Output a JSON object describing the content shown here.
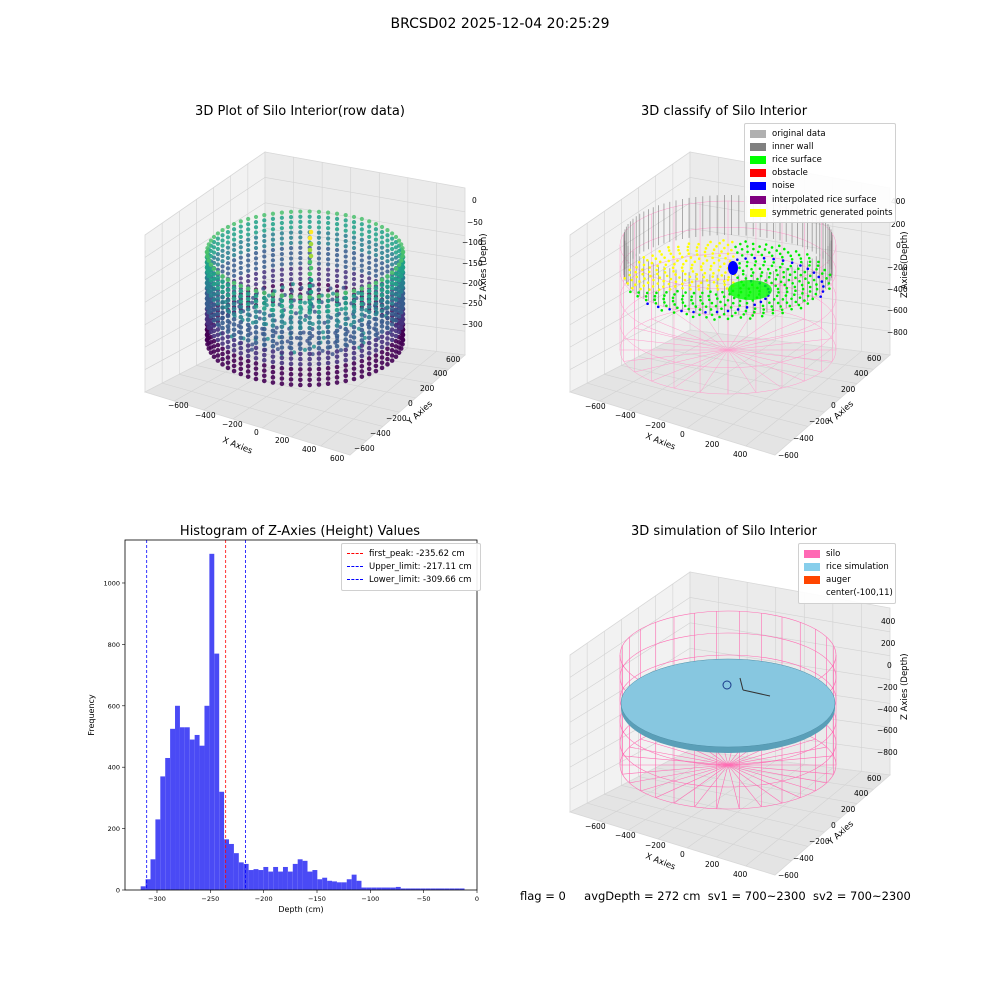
{
  "figure": {
    "suptitle": "BRCSD02 2025-12-04 20:25:29",
    "footer": {
      "flag": "flag = 0",
      "avg": "avgDepth = 272 cm",
      "sv1": "sv1 = 700~2300",
      "sv2": "sv2 = 700~2300"
    }
  },
  "colors": {
    "hist_bar": "#4a4af5",
    "peak_line": "#ff0000",
    "limit_line": "#0000ff",
    "silo_mesh": "#ff6eb4",
    "rice": "#87c7e0",
    "auger": "#ff4500"
  },
  "panels": {
    "raw": {
      "title": "3D Plot of Silo Interior(row data)",
      "x_label": "X Axies",
      "y_label": "Y Axies",
      "z_label": "Z Axies (Depth)",
      "x_ticks": [
        "−600",
        "−400",
        "−200",
        "0",
        "200",
        "400",
        "600"
      ],
      "y_ticks": [
        "−600",
        "−400",
        "−200",
        "0",
        "200",
        "400",
        "600"
      ],
      "z_ticks": [
        "0",
        "−50",
        "−100",
        "−150",
        "−200",
        "−250",
        "−300"
      ]
    },
    "classify": {
      "title": "3D classify of Silo Interior",
      "x_label": "X Axies",
      "y_label": "Y Axies",
      "z_label": "Z Axies (Depth)",
      "x_ticks": [
        "−600",
        "−400",
        "−200",
        "0",
        "200",
        "400"
      ],
      "y_ticks": [
        "−600",
        "−400",
        "−200",
        "0",
        "200",
        "400",
        "600"
      ],
      "z_ticks": [
        "400",
        "200",
        "0",
        "−200",
        "−400",
        "−600",
        "−800"
      ],
      "legend": [
        {
          "label": "original data",
          "color": "#b0b0b0"
        },
        {
          "label": "inner wall",
          "color": "#808080"
        },
        {
          "label": "rice surface",
          "color": "#00ff00"
        },
        {
          "label": "obstacle",
          "color": "#ff0000"
        },
        {
          "label": "noise",
          "color": "#0000ff"
        },
        {
          "label": "interpolated rice surface",
          "color": "#800080"
        },
        {
          "label": "symmetric generated points",
          "color": "#ffff00"
        }
      ]
    },
    "simulation": {
      "title": "3D simulation of Silo Interior",
      "x_label": "X Axies",
      "y_label": "Y Axies",
      "z_label": "Z Axies (Depth)",
      "x_ticks": [
        "−600",
        "−400",
        "−200",
        "0",
        "200",
        "400"
      ],
      "y_ticks": [
        "−600",
        "−400",
        "−200",
        "0",
        "200",
        "400",
        "600"
      ],
      "z_ticks": [
        "400",
        "200",
        "0",
        "−200",
        "−400",
        "−600",
        "−800"
      ],
      "legend": [
        {
          "label": "silo",
          "color": "#ff69b4"
        },
        {
          "label": "rice simulation",
          "color": "#87ceeb"
        },
        {
          "label": "auger",
          "color": "#ff4500"
        },
        {
          "label": "center(-100,11)",
          "color": ""
        }
      ]
    }
  },
  "chart_data": [
    {
      "type": "bar",
      "title": "Histogram of Z-Axies (Height) Values",
      "xlabel": "Depth (cm)",
      "ylabel": "Frequency",
      "xlim": [
        -330,
        0
      ],
      "ylim": [
        0,
        1140
      ],
      "x_ticks": [
        -300,
        -250,
        -200,
        -150,
        -100,
        -50,
        0
      ],
      "y_ticks": [
        0,
        200,
        400,
        600,
        800,
        1000
      ],
      "bin_edges": [
        -315.3,
        -310.7,
        -306.1,
        -301.5,
        -296.9,
        -292.3,
        -287.7,
        -283.1,
        -278.5,
        -273.9,
        -269.3,
        -264.7,
        -260.1,
        -255.5,
        -250.9,
        -246.3,
        -241.7,
        -237.1,
        -232.5,
        -227.9,
        -223.3,
        -218.7,
        -214.1,
        -209.5,
        -204.9,
        -200.3,
        -195.7,
        -191.1,
        -186.5,
        -181.9,
        -177.3,
        -172.7,
        -168.1,
        -163.5,
        -158.9,
        -154.3,
        -149.7,
        -145.1,
        -140.5,
        -135.9,
        -131.3,
        -126.7,
        -122.1,
        -117.5,
        -112.9,
        -108.3,
        -103.7,
        -99.1,
        -94.5,
        -89.9,
        -85.3,
        -80.7,
        -76.1,
        -71.5,
        -66.9,
        -62.3,
        -57.7,
        -53.1,
        -48.5,
        -43.9,
        -39.3,
        -34.7,
        -30.1,
        -25.5,
        -20.9,
        -16.3,
        -11.7
      ],
      "values": [
        12,
        35,
        100,
        230,
        370,
        430,
        525,
        600,
        530,
        530,
        490,
        505,
        470,
        600,
        1095,
        770,
        320,
        165,
        150,
        120,
        90,
        85,
        65,
        68,
        65,
        75,
        60,
        75,
        60,
        75,
        60,
        85,
        100,
        95,
        60,
        65,
        35,
        40,
        30,
        28,
        25,
        25,
        35,
        50,
        30,
        8,
        8,
        8,
        8,
        8,
        8,
        8,
        10,
        5,
        5,
        5,
        5,
        5,
        5,
        5,
        5,
        5,
        5,
        5,
        5,
        5
      ],
      "reference_lines": [
        {
          "label": "first_peak: -235.62 cm",
          "x": -235.62,
          "role": "peak"
        },
        {
          "label": "Upper_limit: -217.11 cm",
          "x": -217.11,
          "role": "limit"
        },
        {
          "label": "Lower_limit: -309.66 cm",
          "x": -309.66,
          "role": "limit"
        }
      ],
      "legend_position": "top-right"
    }
  ]
}
